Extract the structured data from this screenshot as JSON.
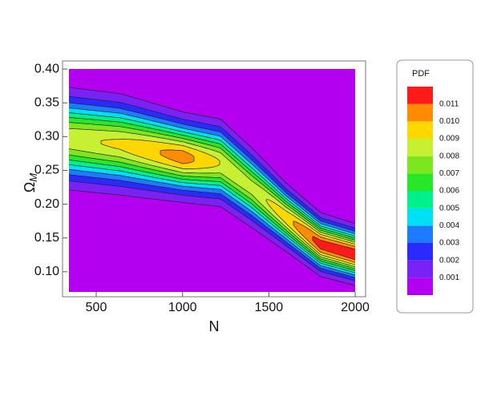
{
  "chart_data": {
    "type": "contour",
    "xlabel": "N",
    "ylabel": {
      "main": "Ω",
      "sub": "M"
    },
    "legend_title": "PDF",
    "xlim": [
      305,
      2060
    ],
    "ylim": [
      0.063,
      0.412
    ],
    "xticks": [
      500,
      1000,
      1500,
      2000
    ],
    "yticks": [
      {
        "value": 0.1,
        "label": "0.10"
      },
      0.15,
      {
        "value": 0.2,
        "label": "0.20"
      },
      0.25,
      {
        "value": 0.3,
        "label": "0.30"
      },
      0.35,
      {
        "value": 0.4,
        "label": "0.40"
      }
    ],
    "levels": [
      0.001,
      0.002,
      0.003,
      0.004,
      0.005,
      0.006,
      0.007,
      0.008,
      0.009,
      {
        "value": 0.01,
        "label": "0.010"
      },
      0.011
    ],
    "colors": [
      "#b400f0",
      "#7a22f5",
      "#2a2aff",
      "#1e7bff",
      "#00e0f5",
      "#00f08c",
      "#28e628",
      "#7ee61e",
      "#c8f032",
      "#ffd700",
      "#ff8c00",
      "#ff1a1a"
    ]
  }
}
